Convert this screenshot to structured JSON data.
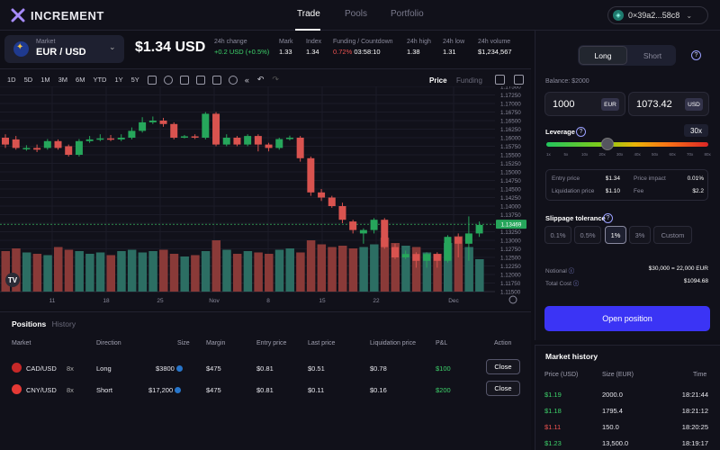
{
  "app": {
    "name": "INCREMENT"
  },
  "nav": {
    "tabs": [
      "Trade",
      "Pools",
      "Portfolio"
    ],
    "active": "Trade"
  },
  "wallet": {
    "address": "0×39a2...58c8"
  },
  "market": {
    "label": "Market",
    "pair": "EUR / USD"
  },
  "price": "$1.34 USD",
  "stats": [
    {
      "label": "24h change",
      "value": "+0.2 USD (+0.5%)",
      "color": "green"
    },
    {
      "label": "Mark",
      "value": "1.33"
    },
    {
      "label": "Index",
      "value": "1.34"
    },
    {
      "label": "Funding / Countdown",
      "value_pct": "0.72%",
      "value_time": "03:58:10"
    },
    {
      "label": "24h high",
      "value": "1.38"
    },
    {
      "label": "24h low",
      "value": "1.31"
    },
    {
      "label": "24h volume",
      "value": "$1,234,567"
    }
  ],
  "toolbar": {
    "timeframes": [
      "1D",
      "5D",
      "1M",
      "3M",
      "6M",
      "YTD",
      "1Y",
      "5Y"
    ],
    "icons": [
      "candles-icon",
      "plus-circle-icon",
      "indicator-icon",
      "bar-chart-icon",
      "compare-icon",
      "alarm-icon",
      "rewind-icon",
      "undo-icon",
      "redo-icon"
    ],
    "views": [
      "Price",
      "Funding"
    ],
    "active_view": "Price"
  },
  "chart_data": {
    "type": "candlestick",
    "x_tick_labels": [
      "11",
      "18",
      "25",
      "Nov",
      "8",
      "15",
      "22",
      "Dec"
    ],
    "y_tick_labels": [
      "1.11500",
      "1.11750",
      "1.12000",
      "1.12250",
      "1.12500",
      "1.12750",
      "1.13000",
      "1.13250",
      "1.13500",
      "1.13750",
      "1.14000",
      "1.14250",
      "1.14500",
      "1.14750",
      "1.15000",
      "1.15250",
      "1.15500",
      "1.15750",
      "1.16000",
      "1.16250",
      "1.16500",
      "1.16750",
      "1.17000",
      "1.17250",
      "1.17500"
    ],
    "current_price_label": "1.13469",
    "ylim": [
      1.115,
      1.175
    ],
    "candles": [
      {
        "o": 1.16,
        "c": 1.158,
        "h": 1.161,
        "l": 1.157
      },
      {
        "o": 1.1595,
        "c": 1.157,
        "h": 1.1605,
        "l": 1.1565
      },
      {
        "o": 1.1568,
        "c": 1.157,
        "h": 1.1578,
        "l": 1.1562
      },
      {
        "o": 1.157,
        "c": 1.1565,
        "h": 1.158,
        "l": 1.1558
      },
      {
        "o": 1.157,
        "c": 1.159,
        "h": 1.1596,
        "l": 1.1565
      },
      {
        "o": 1.159,
        "c": 1.157,
        "h": 1.1595,
        "l": 1.1565
      },
      {
        "o": 1.1575,
        "c": 1.155,
        "h": 1.158,
        "l": 1.1545
      },
      {
        "o": 1.155,
        "c": 1.159,
        "h": 1.1596,
        "l": 1.1545
      },
      {
        "o": 1.159,
        "c": 1.1595,
        "h": 1.1605,
        "l": 1.1585
      },
      {
        "o": 1.1595,
        "c": 1.1598,
        "h": 1.161,
        "l": 1.159
      },
      {
        "o": 1.1598,
        "c": 1.1596,
        "h": 1.1608,
        "l": 1.159
      },
      {
        "o": 1.1595,
        "c": 1.16,
        "h": 1.161,
        "l": 1.159
      },
      {
        "o": 1.16,
        "c": 1.162,
        "h": 1.163,
        "l": 1.1595
      },
      {
        "o": 1.162,
        "c": 1.1645,
        "h": 1.166,
        "l": 1.1615
      },
      {
        "o": 1.1645,
        "c": 1.165,
        "h": 1.1662,
        "l": 1.164
      },
      {
        "o": 1.165,
        "c": 1.164,
        "h": 1.1658,
        "l": 1.1632
      },
      {
        "o": 1.164,
        "c": 1.16,
        "h": 1.1645,
        "l": 1.1595
      },
      {
        "o": 1.16,
        "c": 1.1604,
        "h": 1.1608,
        "l": 1.1598
      },
      {
        "o": 1.1604,
        "c": 1.16,
        "h": 1.161,
        "l": 1.1596
      },
      {
        "o": 1.16,
        "c": 1.167,
        "h": 1.1675,
        "l": 1.1595
      },
      {
        "o": 1.167,
        "c": 1.158,
        "h": 1.1675,
        "l": 1.1575
      },
      {
        "o": 1.158,
        "c": 1.16,
        "h": 1.161,
        "l": 1.1575
      },
      {
        "o": 1.16,
        "c": 1.158,
        "h": 1.1605,
        "l": 1.1575
      },
      {
        "o": 1.158,
        "c": 1.1605,
        "h": 1.161,
        "l": 1.1575
      },
      {
        "o": 1.1605,
        "c": 1.158,
        "h": 1.161,
        "l": 1.156
      },
      {
        "o": 1.158,
        "c": 1.157,
        "h": 1.1585,
        "l": 1.156
      },
      {
        "o": 1.157,
        "c": 1.1596,
        "h": 1.16,
        "l": 1.1565
      },
      {
        "o": 1.1596,
        "c": 1.16,
        "h": 1.1606,
        "l": 1.1592
      },
      {
        "o": 1.16,
        "c": 1.154,
        "h": 1.1605,
        "l": 1.153
      },
      {
        "o": 1.154,
        "c": 1.144,
        "h": 1.1545,
        "l": 1.143
      },
      {
        "o": 1.144,
        "c": 1.1425,
        "h": 1.145,
        "l": 1.1415
      },
      {
        "o": 1.1425,
        "c": 1.14,
        "h": 1.143,
        "l": 1.1395
      },
      {
        "o": 1.14,
        "c": 1.136,
        "h": 1.141,
        "l": 1.135
      },
      {
        "o": 1.1355,
        "c": 1.133,
        "h": 1.136,
        "l": 1.132
      },
      {
        "o": 1.132,
        "c": 1.133,
        "h": 1.1335,
        "l": 1.129
      },
      {
        "o": 1.133,
        "c": 1.136,
        "h": 1.1365,
        "l": 1.132
      },
      {
        "o": 1.136,
        "c": 1.128,
        "h": 1.1365,
        "l": 1.1275
      },
      {
        "o": 1.128,
        "c": 1.125,
        "h": 1.129,
        "l": 1.1245
      },
      {
        "o": 1.125,
        "c": 1.126,
        "h": 1.127,
        "l": 1.1245
      },
      {
        "o": 1.126,
        "c": 1.124,
        "h": 1.1265,
        "l": 1.122
      },
      {
        "o": 1.124,
        "c": 1.126,
        "h": 1.1265,
        "l": 1.122
      },
      {
        "o": 1.126,
        "c": 1.124,
        "h": 1.1265,
        "l": 1.122
      },
      {
        "o": 1.124,
        "c": 1.131,
        "h": 1.1315,
        "l": 1.1235
      },
      {
        "o": 1.131,
        "c": 1.129,
        "h": 1.132,
        "l": 1.125
      },
      {
        "o": 1.129,
        "c": 1.132,
        "h": 1.137,
        "l": 1.124
      },
      {
        "o": 1.132,
        "c": 1.1345,
        "h": 1.1355,
        "l": 1.131
      }
    ],
    "volumes": [
      0.3,
      0.32,
      0.29,
      0.28,
      0.27,
      0.33,
      0.31,
      0.3,
      0.28,
      0.29,
      0.27,
      0.3,
      0.31,
      0.29,
      0.3,
      0.31,
      0.28,
      0.26,
      0.27,
      0.3,
      0.38,
      0.31,
      0.28,
      0.3,
      0.29,
      0.28,
      0.31,
      0.32,
      0.29,
      0.38,
      0.35,
      0.33,
      0.34,
      0.32,
      0.33,
      0.35,
      0.4,
      0.36,
      0.34,
      0.33,
      0.29,
      0.28,
      0.36,
      0.41,
      0.33,
      0.24
    ],
    "ylabel": "",
    "xlabel": ""
  },
  "positions": {
    "tabs": [
      "Positions",
      "History"
    ],
    "headers": [
      "Market",
      "Direction",
      "Size",
      "Margin",
      "Entry price",
      "Last price",
      "Liquidation price",
      "P&L",
      "Action"
    ],
    "rows": [
      {
        "market": "CAD/USD",
        "lev": "8x",
        "direction": "Long",
        "size": "$3800",
        "margin": "$475",
        "entry": "$0.81",
        "last": "$0.51",
        "liq": "$0.78",
        "pnl": "$100",
        "action": "Close",
        "flag_color": "#c62828"
      },
      {
        "market": "CNY/USD",
        "lev": "8x",
        "direction": "Short",
        "size": "$17,200",
        "margin": "$475",
        "entry": "$0.81",
        "last": "$0.11",
        "liq": "$0.16",
        "pnl": "$200",
        "action": "Close",
        "flag_color": "#e53935"
      }
    ]
  },
  "trade": {
    "long_label": "Long",
    "short_label": "Short",
    "balance": "Balance: $2000",
    "input_eur": "1000",
    "unit_eur": "EUR",
    "input_usd": "1073.42",
    "unit_usd": "USD",
    "leverage_label": "Leverage",
    "leverage_value": "30x",
    "leverage_fraction": 0.38,
    "leverage_ticks": [
      "1x",
      "5x",
      "10x",
      "20x",
      "30x",
      "40x",
      "50x",
      "60x",
      "70x",
      "80x"
    ],
    "info": [
      {
        "label": "Entry price",
        "value": "$1.34"
      },
      {
        "label": "Price impact",
        "value": "0.01%"
      },
      {
        "label": "Liquidation price",
        "value": "$1.10"
      },
      {
        "label": "Fee",
        "value": "$2.2"
      }
    ],
    "slippage_label": "Slippage tolerance",
    "slippage_options": [
      "0.1%",
      "0.5%",
      "1%",
      "3%",
      "Custom"
    ],
    "slippage_selected": "1%",
    "notional_label": "Notional",
    "notional_value": "$30,000 = 22,000 EUR",
    "totalcost_label": "Total Cost",
    "totalcost_value": "$1094.68",
    "open_label": "Open position"
  },
  "history": {
    "title": "Market history",
    "headers": [
      "Price (USD)",
      "Size (EUR)",
      "Time"
    ],
    "rows": [
      {
        "price": "$1.19",
        "size": "2000.0",
        "time": "18:21:44",
        "side": "buy"
      },
      {
        "price": "$1.18",
        "size": "1795.4",
        "time": "18:21:12",
        "side": "buy"
      },
      {
        "price": "$1.11",
        "size": "150.0",
        "time": "18:20:25",
        "side": "sell"
      },
      {
        "price": "$1.23",
        "size": "13,500.0",
        "time": "18:19:17",
        "side": "buy"
      }
    ]
  },
  "colors": {
    "green": "#26a65b",
    "red": "#d9534f",
    "vol_green": "#2c6e63",
    "vol_red": "#8a3a38",
    "accent": "#3b34f5"
  }
}
